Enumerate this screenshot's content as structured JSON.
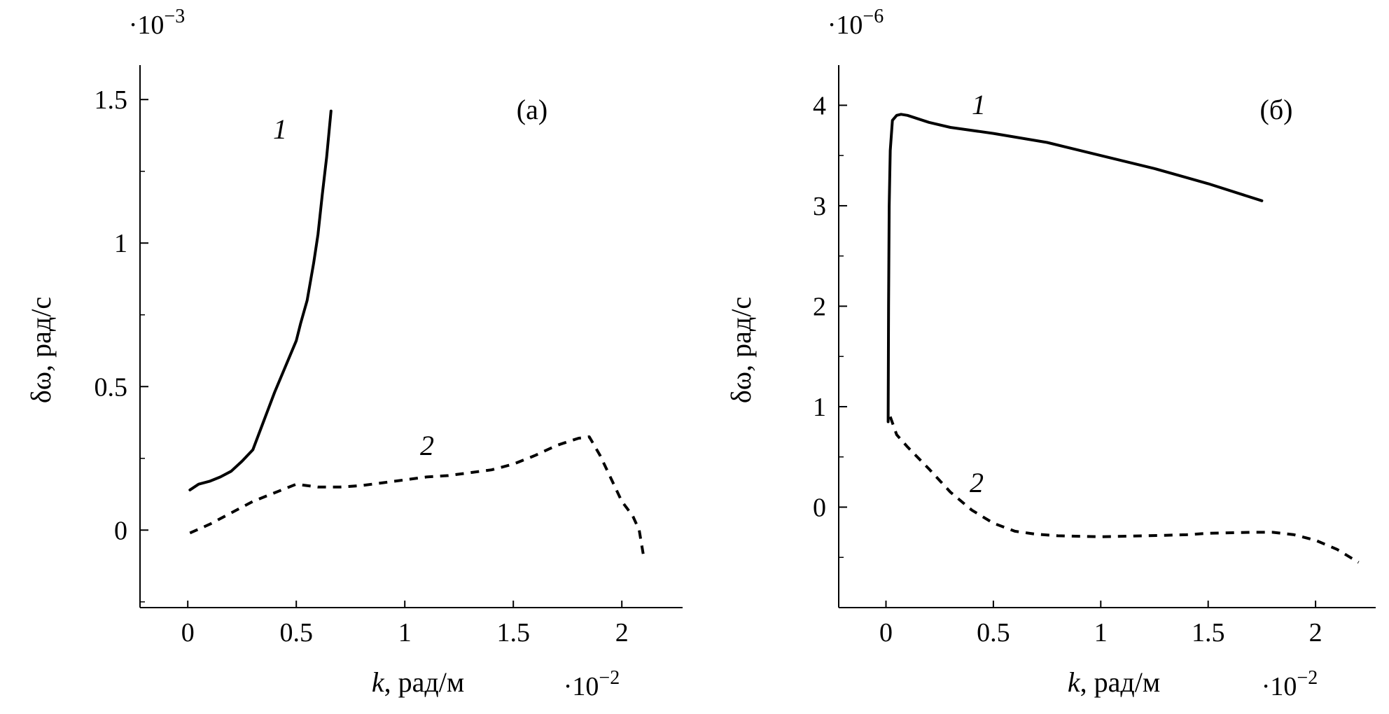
{
  "chart_data": [
    {
      "type": "line",
      "panel_label": "(а)",
      "xlabel_var": "k",
      "xlabel_unit": ", рад/м",
      "ylabel": "δω, рад/с",
      "x_scale_label": "·10",
      "x_scale_exp": "−2",
      "y_scale_label": "·10",
      "y_scale_exp": "−3",
      "xlim": [
        -0.22,
        2.28
      ],
      "ylim": [
        -0.27,
        1.62
      ],
      "x_ticks": [
        0,
        0.5,
        1,
        1.5,
        2
      ],
      "x_tick_labels": [
        "0",
        "0.5",
        "1",
        "1.5",
        "2"
      ],
      "y_ticks": [
        0,
        0.5,
        1,
        1.5
      ],
      "y_tick_labels": [
        "0",
        "0.5",
        "1",
        "1.5"
      ],
      "y_minor_ticks": [
        -0.25,
        0.25,
        0.75,
        1.25
      ],
      "legend": "none (curves labeled inline)",
      "grid": false,
      "series": [
        {
          "label": "1",
          "style": "solid",
          "x": [
            0.01,
            0.05,
            0.1,
            0.15,
            0.2,
            0.25,
            0.3,
            0.35,
            0.4,
            0.45,
            0.5,
            0.52,
            0.55,
            0.58,
            0.6,
            0.62,
            0.64,
            0.66
          ],
          "y": [
            0.14,
            0.16,
            0.17,
            0.185,
            0.205,
            0.24,
            0.28,
            0.38,
            0.48,
            0.57,
            0.66,
            0.72,
            0.8,
            0.93,
            1.03,
            1.17,
            1.3,
            1.46
          ]
        },
        {
          "label": "2",
          "style": "dashed",
          "x": [
            0.01,
            0.1,
            0.2,
            0.3,
            0.4,
            0.5,
            0.6,
            0.7,
            0.8,
            0.9,
            1.0,
            1.1,
            1.2,
            1.3,
            1.4,
            1.5,
            1.6,
            1.7,
            1.8,
            1.85,
            1.9,
            1.95,
            2.0,
            2.05,
            2.08,
            2.1
          ],
          "y": [
            -0.01,
            0.02,
            0.06,
            0.1,
            0.13,
            0.16,
            0.15,
            0.15,
            0.155,
            0.165,
            0.175,
            0.185,
            0.19,
            0.2,
            0.21,
            0.23,
            0.26,
            0.295,
            0.32,
            0.325,
            0.26,
            0.18,
            0.1,
            0.05,
            0.0,
            -0.09
          ]
        }
      ]
    },
    {
      "type": "line",
      "panel_label": "(б)",
      "xlabel_var": "k",
      "xlabel_unit": ", рад/м",
      "ylabel": "δω, рад/с",
      "x_scale_label": "·10",
      "x_scale_exp": "−2",
      "y_scale_label": "·10",
      "y_scale_exp": "−6",
      "xlim": [
        -0.22,
        2.28
      ],
      "ylim": [
        -1.0,
        4.4
      ],
      "x_ticks": [
        0,
        0.5,
        1,
        1.5,
        2
      ],
      "x_tick_labels": [
        "0",
        "0.5",
        "1",
        "1.5",
        "2"
      ],
      "y_ticks": [
        0,
        1,
        2,
        3,
        4
      ],
      "y_tick_labels": [
        "0",
        "1",
        "2",
        "3",
        "4"
      ],
      "y_minor_ticks": [
        -0.5,
        0.5,
        1.5,
        2.5,
        3.5
      ],
      "legend": "none (curves labeled inline)",
      "grid": false,
      "series": [
        {
          "label": "1",
          "style": "solid",
          "x": [
            0.01,
            0.012,
            0.015,
            0.02,
            0.03,
            0.05,
            0.07,
            0.1,
            0.2,
            0.3,
            0.5,
            0.75,
            1.0,
            1.25,
            1.5,
            1.75
          ],
          "y": [
            0.85,
            2.0,
            3.0,
            3.55,
            3.85,
            3.9,
            3.91,
            3.9,
            3.83,
            3.78,
            3.72,
            3.63,
            3.5,
            3.37,
            3.22,
            3.05
          ]
        },
        {
          "label": "2",
          "style": "dashed",
          "x": [
            0.02,
            0.05,
            0.1,
            0.2,
            0.3,
            0.4,
            0.5,
            0.6,
            0.7,
            0.8,
            0.9,
            1.0,
            1.1,
            1.2,
            1.3,
            1.4,
            1.5,
            1.6,
            1.7,
            1.8,
            1.9,
            2.0,
            2.1,
            2.2
          ],
          "y": [
            0.9,
            0.72,
            0.6,
            0.38,
            0.15,
            -0.03,
            -0.16,
            -0.24,
            -0.27,
            -0.285,
            -0.29,
            -0.295,
            -0.29,
            -0.285,
            -0.28,
            -0.275,
            -0.26,
            -0.255,
            -0.25,
            -0.25,
            -0.275,
            -0.33,
            -0.42,
            -0.55
          ]
        }
      ]
    }
  ]
}
